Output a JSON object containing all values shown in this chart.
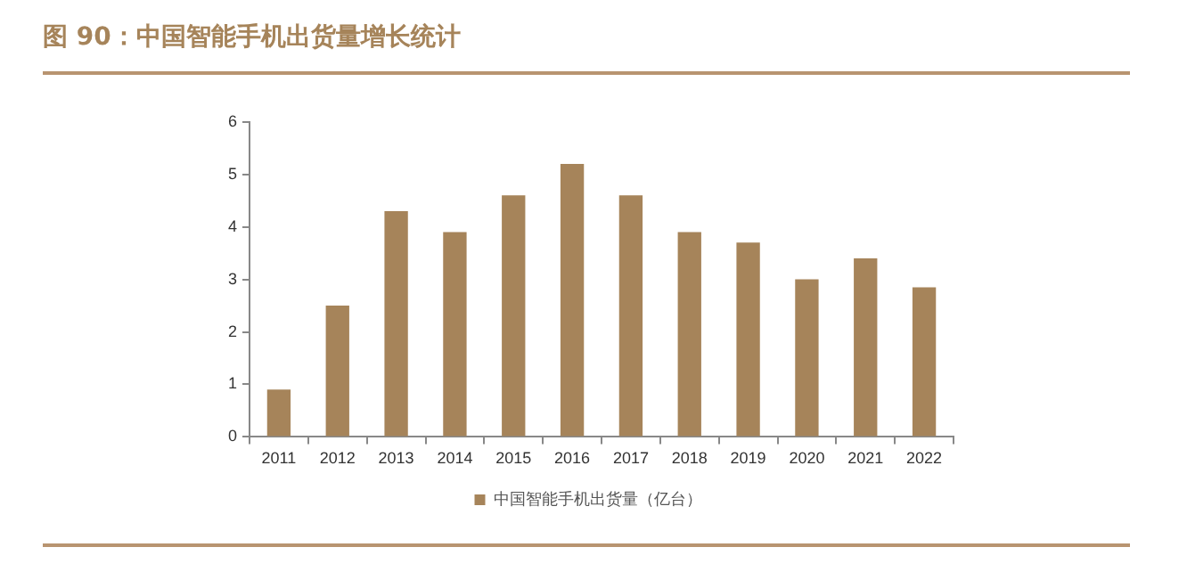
{
  "chart_data": {
    "type": "bar",
    "title": "图 90：中国智能手机出货量增长统计",
    "categories": [
      "2011",
      "2012",
      "2013",
      "2014",
      "2015",
      "2016",
      "2017",
      "2018",
      "2019",
      "2020",
      "2021",
      "2022"
    ],
    "series": [
      {
        "name": "中国智能手机出货量（亿台）",
        "color": "#a6845a",
        "values": [
          0.9,
          2.5,
          4.3,
          3.9,
          4.6,
          5.2,
          4.6,
          3.9,
          3.7,
          3.0,
          3.4,
          2.85
        ]
      }
    ],
    "ylim": [
      0,
      6
    ],
    "yticks": [
      0,
      1,
      2,
      3,
      4,
      5,
      6
    ],
    "grid": false,
    "legend": "bottom"
  }
}
